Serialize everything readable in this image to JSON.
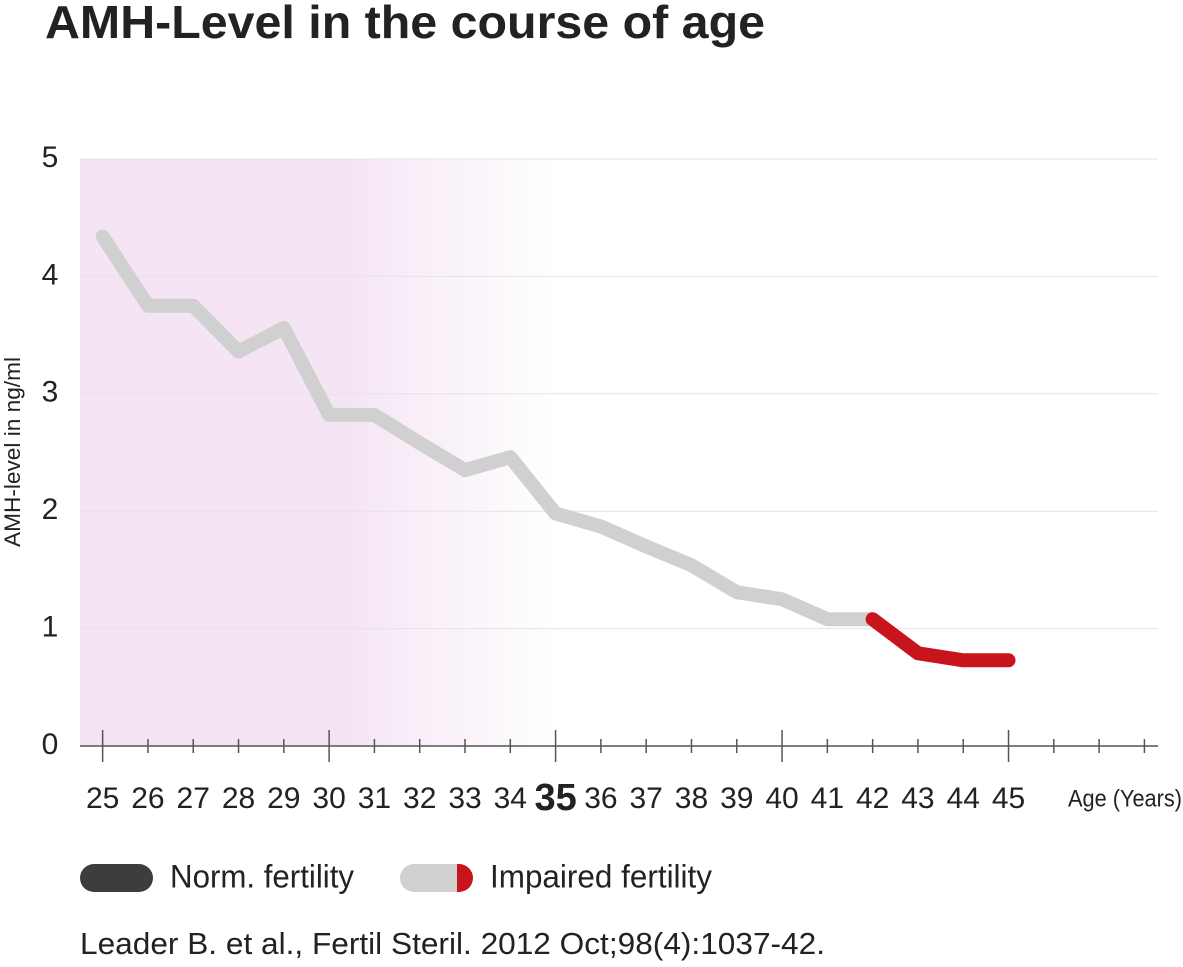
{
  "chart_data": {
    "type": "line",
    "title": "AMH-Level in the course of age",
    "y_label": "AMH-level in ng/ml",
    "x_label": "Age (Years)",
    "x": [
      25,
      26,
      27,
      28,
      29,
      30,
      31,
      32,
      33,
      34,
      35,
      36,
      37,
      38,
      39,
      40,
      41,
      42,
      43,
      44,
      45
    ],
    "series": [
      {
        "color": "#d0d0d0",
        "highlight_color": "#c8141c",
        "highlight_from": 42,
        "values": [
          4.34,
          3.75,
          3.75,
          3.36,
          3.56,
          2.82,
          2.82,
          2.58,
          2.35,
          2.46,
          1.98,
          1.87,
          1.7,
          1.54,
          1.31,
          1.25,
          1.08,
          1.08,
          0.79,
          0.73,
          0.73
        ]
      }
    ],
    "xlim": [
      24.5,
      48.3
    ],
    "xticks": [
      25,
      26,
      27,
      28,
      29,
      30,
      31,
      32,
      33,
      34,
      35,
      36,
      37,
      38,
      39,
      40,
      41,
      42,
      43,
      44,
      45
    ],
    "xticks_unlabeled": [
      46,
      47,
      48
    ],
    "xticks_major": [
      25,
      30,
      35,
      40,
      45
    ],
    "highlight_tick": 35,
    "ylim": [
      0,
      5
    ],
    "yticks": [
      0,
      1,
      2,
      3,
      4,
      5
    ],
    "grid": true,
    "shade_until": 35,
    "shade_color": "#f4e4f4",
    "legend_items": [
      {
        "label": "Norm. fertility",
        "colors": [
          "#3d3d3d"
        ]
      },
      {
        "label": "Impaired fertility",
        "colors": [
          "#d0d0d0",
          "#c8141c"
        ]
      }
    ],
    "source": "Leader B. et al., Fertil Steril. 2012 Oct;98(4):1037-42."
  }
}
